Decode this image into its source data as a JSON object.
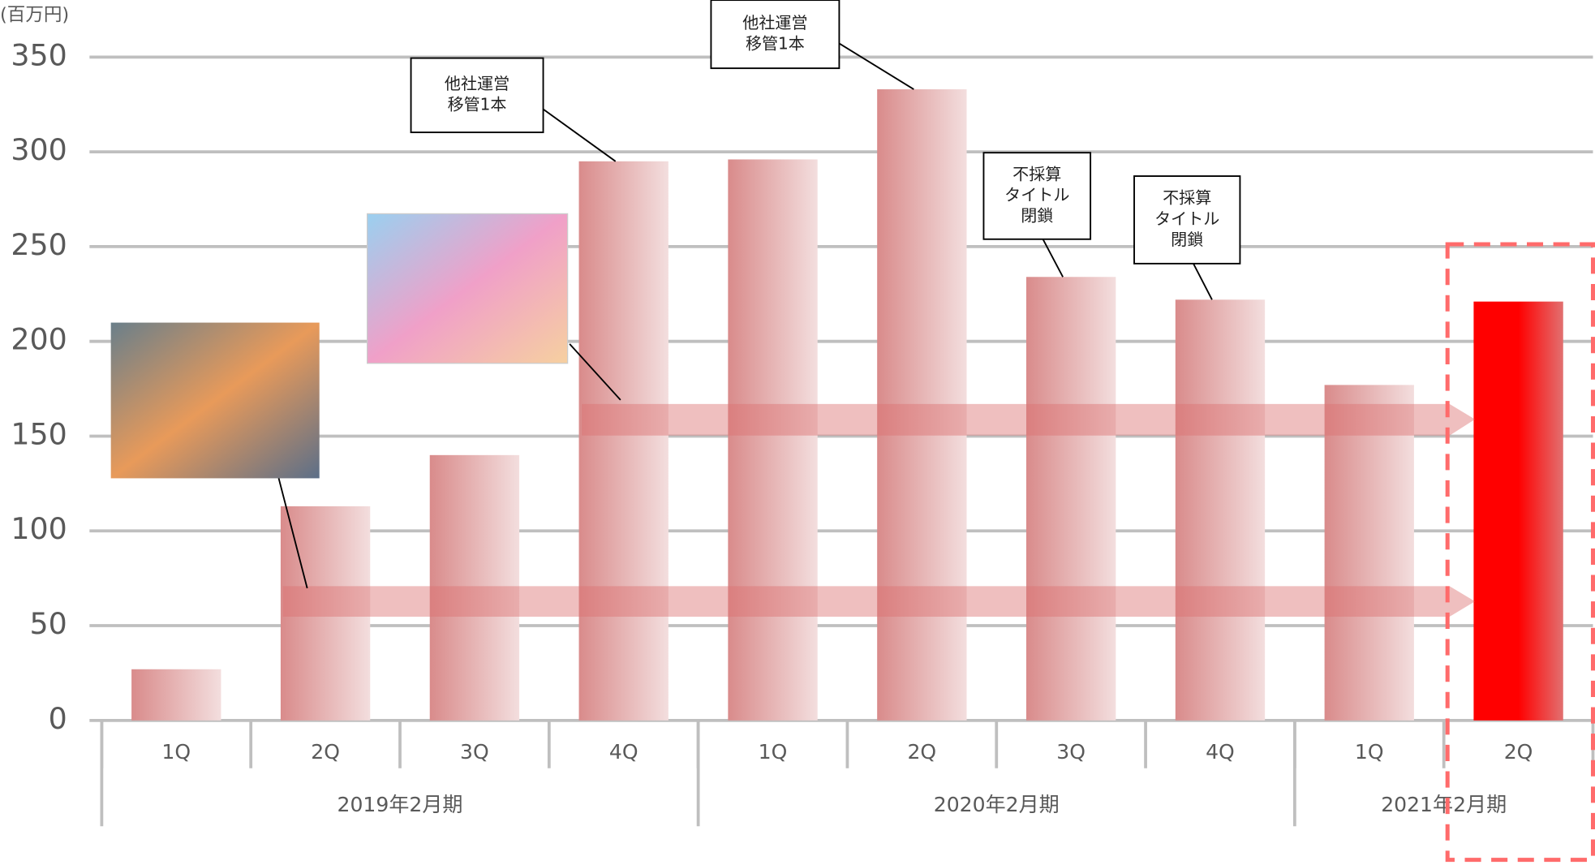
{
  "chart_data": {
    "type": "bar",
    "unit_label": "(百万円)",
    "categories": [
      "1Q",
      "2Q",
      "3Q",
      "4Q",
      "1Q",
      "2Q",
      "3Q",
      "4Q",
      "1Q",
      "2Q"
    ],
    "groups": [
      {
        "label": "2019年2月期",
        "span": 4
      },
      {
        "label": "2020年2月期",
        "span": 4
      },
      {
        "label": "2021年2月期",
        "span": 2
      }
    ],
    "values": [
      27,
      113,
      140,
      295,
      296,
      333,
      234,
      222,
      177,
      221
    ],
    "colors": [
      "#d98b8b",
      "#d98b8b",
      "#d98b8b",
      "#d98b8b",
      "#d98b8b",
      "#d98b8b",
      "#d98b8b",
      "#d98b8b",
      "#d98b8b",
      "#ff0000"
    ],
    "ylim": [
      0,
      350
    ],
    "yticks": [
      0,
      50,
      100,
      150,
      200,
      250,
      300,
      350
    ],
    "grid": true,
    "annotations": [
      {
        "lines": [
          "他社運営",
          "移管1本"
        ]
      },
      {
        "lines": [
          "他社運営",
          "移管1本"
        ]
      },
      {
        "lines": [
          "不採算",
          "タイトル",
          "閉鎖"
        ]
      },
      {
        "lines": [
          "不採算",
          "タイトル",
          "閉鎖"
        ]
      }
    ]
  }
}
